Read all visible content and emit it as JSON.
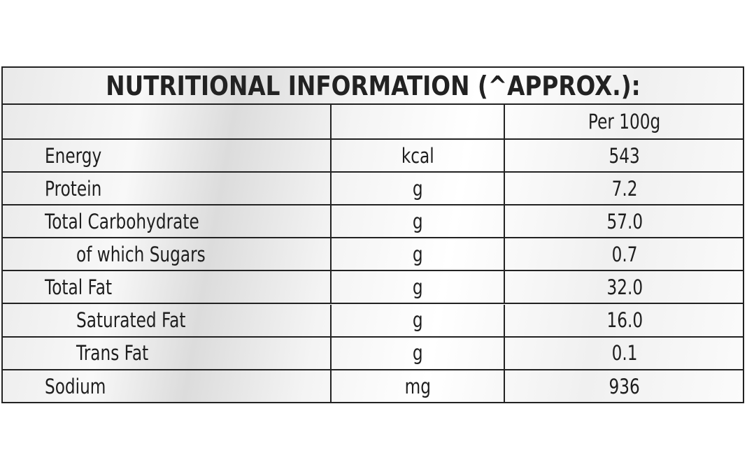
{
  "table": {
    "title": "NUTRITIONAL INFORMATION (^APPROX.):",
    "column_header": "Per 100g",
    "rows": [
      [
        "Energy",
        "kcal",
        "543"
      ],
      [
        "Protein",
        "g",
        "7.2"
      ],
      [
        "Total Carbohydrate",
        "g",
        "57.0"
      ],
      [
        "of which Sugars",
        "g",
        "0.7"
      ],
      [
        "Total Fat",
        "g",
        "32.0"
      ],
      [
        "Saturated Fat",
        "g",
        "16.0"
      ],
      [
        "Trans Fat",
        "g",
        "0.1"
      ],
      [
        "Sodium",
        "mg",
        "936"
      ]
    ]
  }
}
